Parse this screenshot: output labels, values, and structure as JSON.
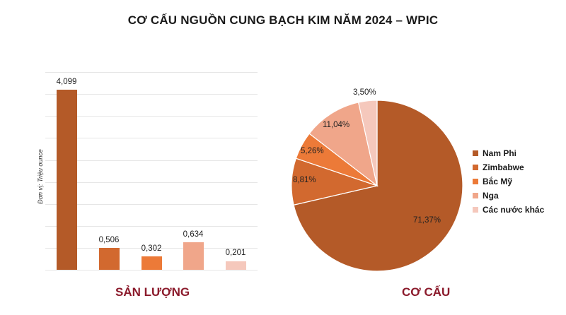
{
  "title": "CƠ CẤU NGUỒN CUNG BẠCH KIM NĂM 2024 – WPIC",
  "bar_panel": {
    "ylabel": "Đơn vị: Triệu ounce",
    "section_label": "SẢN LƯỢNG",
    "value_labels": [
      "4,099",
      "0,506",
      "0,302",
      "0,634",
      "0,201"
    ]
  },
  "pie_panel": {
    "section_label": "CƠ CẤU",
    "slice_labels": [
      "71,37%",
      "8,81%",
      "5,26%",
      "11,04%",
      "3,50%"
    ]
  },
  "legend": {
    "items": [
      {
        "label": "Nam Phi",
        "color": "#b45a28"
      },
      {
        "label": "Zimbabwe",
        "color": "#d2692f"
      },
      {
        "label": "Bắc Mỹ",
        "color": "#ec7a38"
      },
      {
        "label": "Nga",
        "color": "#f0a68a"
      },
      {
        "label": "Các nước khác",
        "color": "#f5c8bc"
      }
    ]
  },
  "colors": {
    "section_label": "#8b1a2b",
    "gridline": "#e6e6e6"
  },
  "chart_data": [
    {
      "type": "bar",
      "title": "SẢN LƯỢNG",
      "categories": [
        "Nam Phi",
        "Zimbabwe",
        "Bắc Mỹ",
        "Nga",
        "Các nước khác"
      ],
      "values": [
        4.099,
        0.506,
        0.302,
        0.634,
        0.201
      ],
      "value_labels": [
        "4,099",
        "0,506",
        "0,302",
        "0,634",
        "0,201"
      ],
      "colors": [
        "#b45a28",
        "#d2692f",
        "#ec7a38",
        "#f0a68a",
        "#f5c8bc"
      ],
      "xlabel": "",
      "ylabel": "Đơn vị: Triệu ounce",
      "ylim": [
        0,
        4.5
      ],
      "grid": true,
      "grid_step": 0.5,
      "tick_labels_shown": false
    },
    {
      "type": "pie",
      "title": "CƠ CẤU",
      "categories": [
        "Nam Phi",
        "Zimbabwe",
        "Bắc Mỹ",
        "Nga",
        "Các nước khác"
      ],
      "values": [
        71.37,
        8.81,
        5.26,
        11.04,
        3.5
      ],
      "value_labels": [
        "71,37%",
        "8,81%",
        "5,26%",
        "11,04%",
        "3,50%"
      ],
      "colors": [
        "#b45a28",
        "#d2692f",
        "#ec7a38",
        "#f0a68a",
        "#f5c8bc"
      ],
      "legend_position": "right"
    }
  ]
}
